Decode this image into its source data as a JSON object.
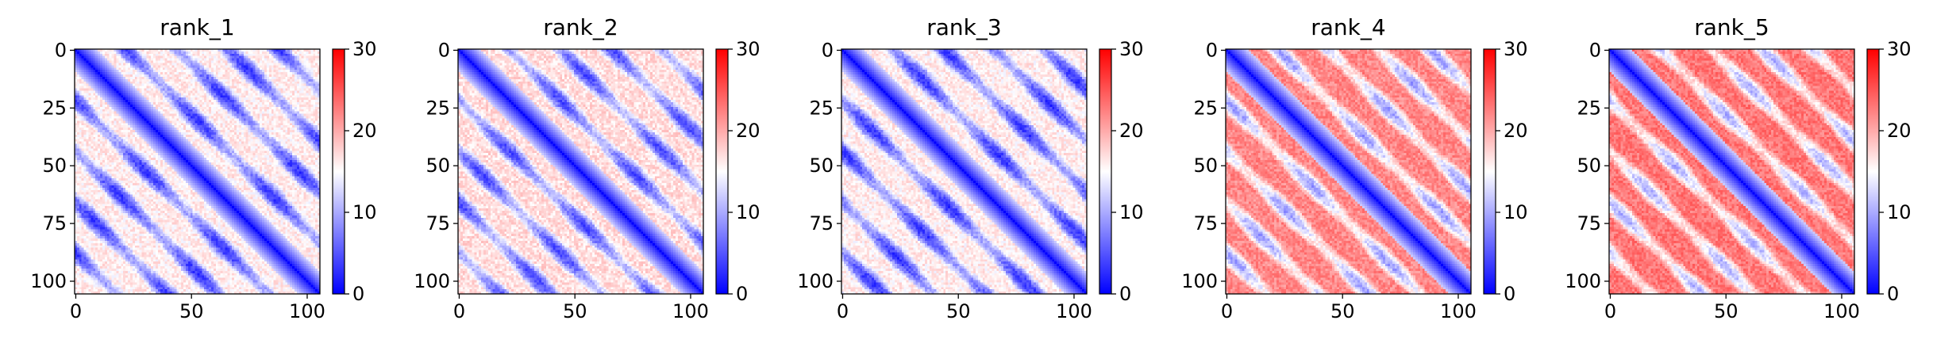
{
  "chart_data": [
    {
      "type": "heatmap",
      "title": "rank_1",
      "size": 106,
      "x_ticks": [
        0,
        50,
        100
      ],
      "y_ticks": [
        0,
        25,
        50,
        75,
        100
      ],
      "colormap": "bwr",
      "colorbar": {
        "min": 0,
        "max": 30,
        "ticks": [
          0,
          10,
          20,
          30
        ]
      },
      "pattern": {
        "blue_block_period": 22,
        "off_diagonal_mean": 16
      }
    },
    {
      "type": "heatmap",
      "title": "rank_2",
      "size": 106,
      "x_ticks": [
        0,
        50,
        100
      ],
      "y_ticks": [
        0,
        25,
        50,
        75,
        100
      ],
      "colormap": "bwr",
      "colorbar": {
        "min": 0,
        "max": 30,
        "ticks": [
          0,
          10,
          20,
          30
        ]
      },
      "pattern": {
        "blue_block_period": 22,
        "off_diagonal_mean": 17
      }
    },
    {
      "type": "heatmap",
      "title": "rank_3",
      "size": 106,
      "x_ticks": [
        0,
        50,
        100
      ],
      "y_ticks": [
        0,
        25,
        50,
        75,
        100
      ],
      "colormap": "bwr",
      "colorbar": {
        "min": 0,
        "max": 30,
        "ticks": [
          0,
          10,
          20,
          30
        ]
      },
      "pattern": {
        "blue_block_period": 22,
        "off_diagonal_mean": 16
      }
    },
    {
      "type": "heatmap",
      "title": "rank_4",
      "size": 106,
      "x_ticks": [
        0,
        50,
        100
      ],
      "y_ticks": [
        0,
        25,
        50,
        75,
        100
      ],
      "colormap": "bwr",
      "colorbar": {
        "min": 0,
        "max": 30,
        "ticks": [
          0,
          10,
          20,
          30
        ]
      },
      "pattern": {
        "blue_block_period": 22,
        "off_diagonal_mean": 22
      }
    },
    {
      "type": "heatmap",
      "title": "rank_5",
      "size": 106,
      "x_ticks": [
        0,
        50,
        100
      ],
      "y_ticks": [
        0,
        25,
        50,
        75,
        100
      ],
      "colormap": "bwr",
      "colorbar": {
        "min": 0,
        "max": 30,
        "ticks": [
          0,
          10,
          20,
          30
        ]
      },
      "pattern": {
        "blue_block_period": 22,
        "off_diagonal_mean": 23
      }
    }
  ]
}
